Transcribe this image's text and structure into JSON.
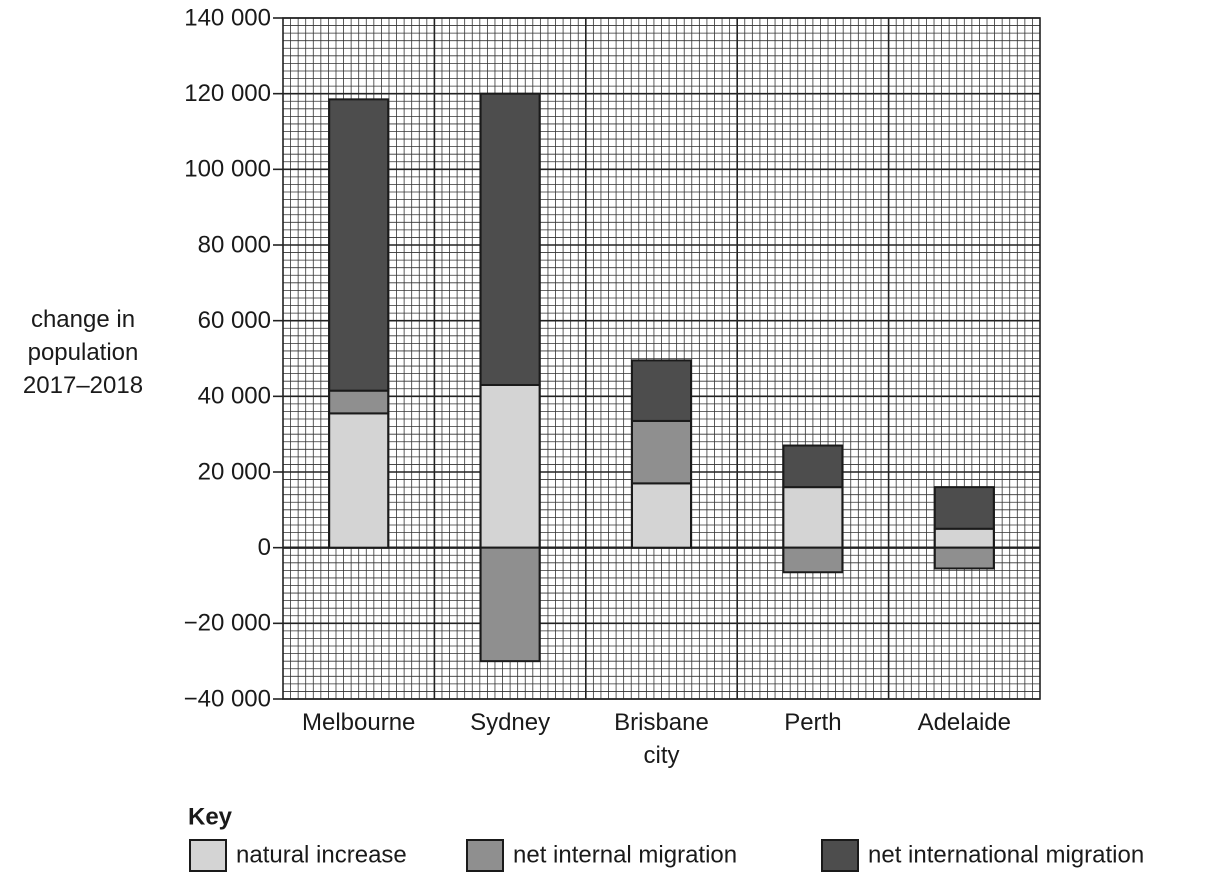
{
  "chart_data": {
    "type": "stacked_bar",
    "ylabel": "change in population 2017–2018",
    "categories": [
      "Melbourne",
      "Sydney",
      "Brisbane city",
      "Perth",
      "Adelaide"
    ],
    "series": [
      {
        "name": "natural increase",
        "color": "#d4d4d4",
        "values": [
          35500,
          43000,
          17000,
          16000,
          5000
        ]
      },
      {
        "name": "net internal migration",
        "color": "#8f8f8f",
        "values": [
          6000,
          -30000,
          16500,
          -6500,
          -5500
        ]
      },
      {
        "name": "net international migration",
        "color": "#4d4d4d",
        "values": [
          77000,
          77000,
          16000,
          11000,
          11000
        ]
      }
    ],
    "ylim": [
      -40000,
      140000
    ],
    "yticks": [
      {
        "value": -40000,
        "label": "−40 000"
      },
      {
        "value": -20000,
        "label": "−20 000"
      },
      0,
      {
        "value": 20000,
        "label": "20 000"
      },
      {
        "value": 40000,
        "label": "40 000"
      },
      {
        "value": 60000,
        "label": "60 000"
      },
      {
        "value": 80000,
        "label": "80 000"
      },
      {
        "value": 100000,
        "label": "100 000"
      },
      {
        "value": 120000,
        "label": "120 000"
      },
      {
        "value": 140000,
        "label": "140 000"
      }
    ],
    "grid": true,
    "legend_title": "Key"
  }
}
